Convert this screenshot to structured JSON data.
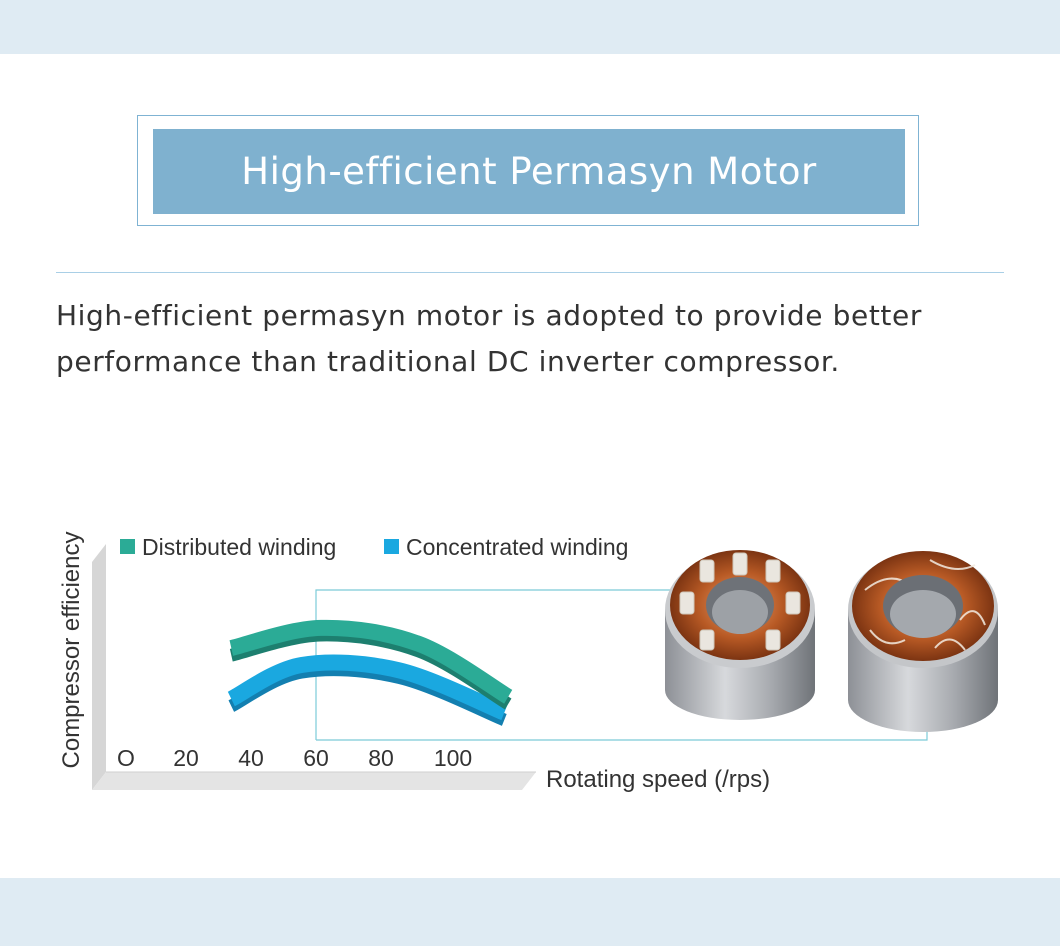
{
  "header": {
    "title": "High-efficient Permasyn Motor"
  },
  "description": {
    "line1": "High-efficient permasyn motor is adopted to provide better",
    "line2": "performance than traditional DC inverter compressor."
  },
  "colors": {
    "band": "#dfebf3",
    "title_bg": "#7fb1cf",
    "distributed": "#2bab96",
    "concentrated": "#1aa8e0",
    "axis_wall": "#e2e2e2"
  },
  "chart_data": {
    "type": "line",
    "title": "",
    "xlabel": "Rotating speed (/rps)",
    "ylabel": "Compressor efficiency",
    "tick_labels": [
      "O",
      "20",
      "40",
      "60",
      "80",
      "100"
    ],
    "xlim": [
      0,
      100
    ],
    "legend_position": "top-left",
    "grid": false,
    "series": [
      {
        "name": "Distributed winding",
        "color": "#2bab96",
        "points": [
          [
            27,
            0.66
          ],
          [
            50,
            0.85
          ],
          [
            75,
            0.7
          ],
          [
            98,
            0.2
          ]
        ]
      },
      {
        "name": "Concentrated winding",
        "color": "#1aa8e0",
        "points": [
          [
            27,
            0.18
          ],
          [
            45,
            0.5
          ],
          [
            70,
            0.45
          ],
          [
            97,
            0.05
          ]
        ]
      }
    ]
  },
  "images": {
    "motor_1": "distributed-winding-stator",
    "motor_2": "concentrated-winding-stator"
  }
}
